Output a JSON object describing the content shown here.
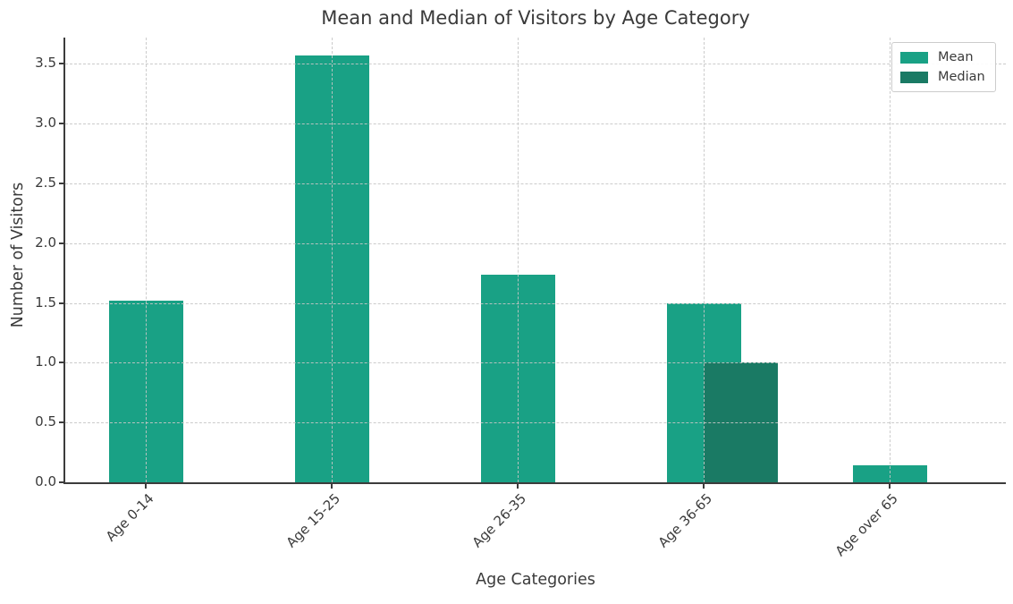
{
  "chart_data": {
    "type": "bar",
    "title": "Mean and Median of Visitors by Age Category",
    "xlabel": "Age Categories",
    "ylabel": "Number of Visitors",
    "categories": [
      "Age 0-14",
      "Age 15-25",
      "Age 26-35",
      "Age 36-65",
      "Age over 65"
    ],
    "series": [
      {
        "name": "Mean",
        "color": "#19a185",
        "values": [
          1.52,
          3.57,
          1.74,
          1.5,
          0.14
        ]
      },
      {
        "name": "Median",
        "color": "#1a7a64",
        "values": [
          0,
          0,
          0,
          1.0,
          0
        ]
      }
    ],
    "y_ticks": [
      0.0,
      0.5,
      1.0,
      1.5,
      2.0,
      2.5,
      3.0,
      3.5
    ],
    "ylim": [
      0,
      3.72
    ],
    "grid": "dashed, drawn above bars",
    "legend_position": "upper right",
    "bar_style": "median bar overlaps mean bar, offset right by half bar width",
    "colors": {
      "text": "#3a3a3a",
      "spine": "#3c3c3c",
      "grid": "#c6c6c6",
      "background": "#ffffff"
    }
  }
}
